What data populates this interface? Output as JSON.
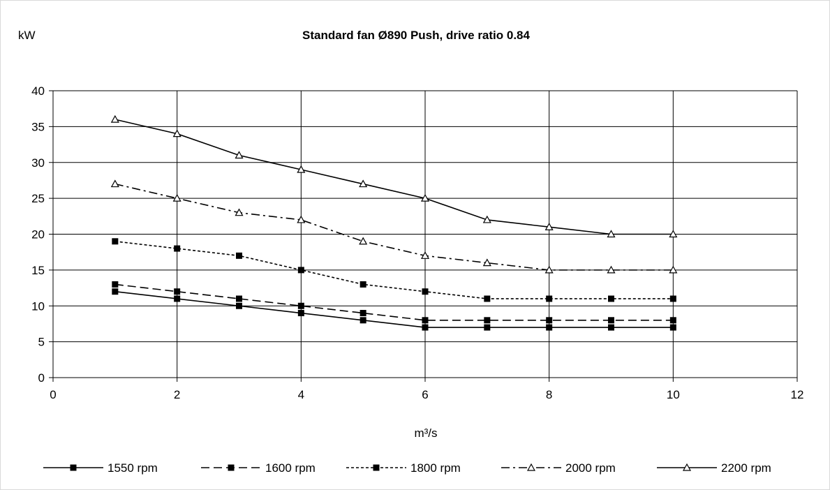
{
  "chart_data": {
    "type": "line",
    "title": "Standard fan Ø890 Push, drive ratio 0.84",
    "xlabel": "m³/s",
    "ylabel": "kW",
    "xlim": [
      0,
      12
    ],
    "ylim": [
      0,
      40
    ],
    "xticks": [
      0,
      2,
      4,
      6,
      8,
      10,
      12
    ],
    "yticks": [
      0,
      5,
      10,
      15,
      20,
      25,
      30,
      35,
      40
    ],
    "grid": true,
    "legend_position": "bottom",
    "x": [
      1,
      2,
      3,
      4,
      5,
      6,
      7,
      8,
      9,
      10
    ],
    "series": [
      {
        "name": "1550 rpm",
        "values": [
          12,
          11,
          10,
          9,
          8,
          7,
          7,
          7,
          7,
          7
        ],
        "dash": "solid",
        "marker": "square"
      },
      {
        "name": "1600 rpm",
        "values": [
          13,
          12,
          11,
          10,
          9,
          8,
          8,
          8,
          8,
          8
        ],
        "dash": "long-dash",
        "marker": "square"
      },
      {
        "name": "1800 rpm",
        "values": [
          19,
          18,
          17,
          15,
          13,
          12,
          11,
          11,
          11,
          11
        ],
        "dash": "short-dash",
        "marker": "square"
      },
      {
        "name": "2000 rpm",
        "values": [
          27,
          25,
          23,
          22,
          19,
          17,
          16,
          15,
          15,
          15
        ],
        "dash": "dash-dot",
        "marker": "triangle"
      },
      {
        "name": "2200 rpm",
        "values": [
          36,
          34,
          31,
          29,
          27,
          25,
          22,
          21,
          20,
          20
        ],
        "dash": "solid",
        "marker": "triangle"
      }
    ]
  }
}
